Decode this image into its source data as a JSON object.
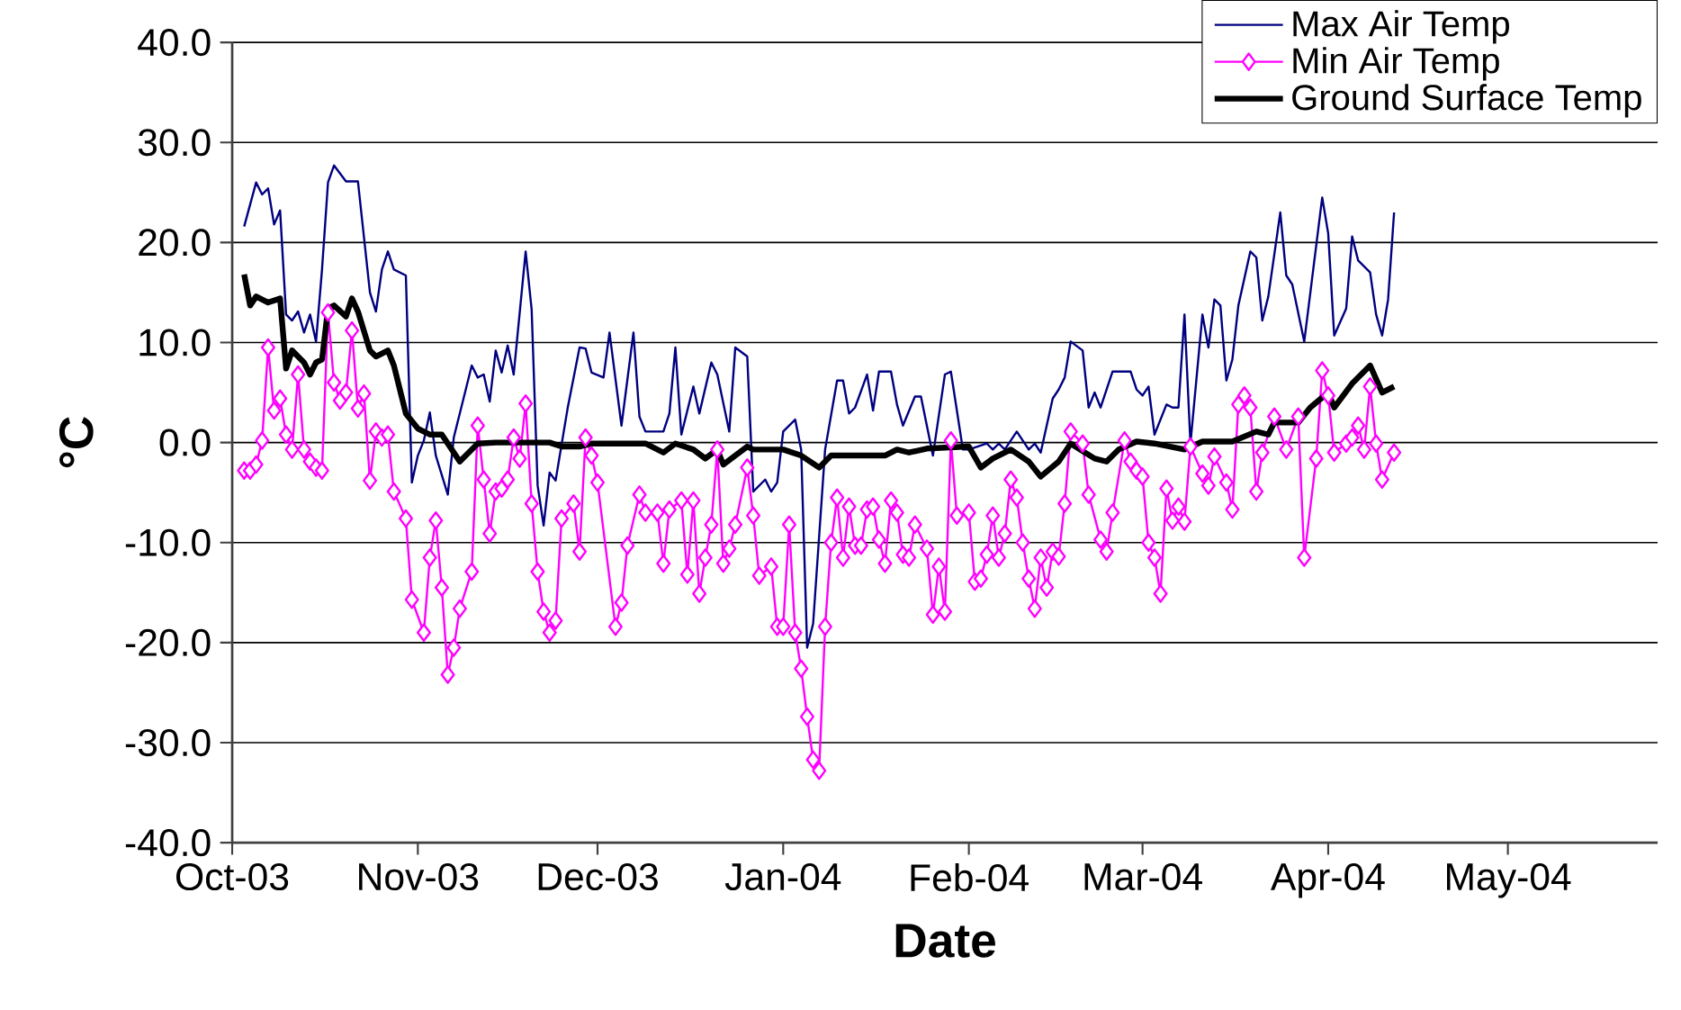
{
  "chart_data": {
    "type": "line",
    "xlabel": "Date",
    "ylabel": "°C",
    "xlim": [
      "2003-10-01",
      "2004-05-26"
    ],
    "xticks": [
      {
        "value": "2003-10-01",
        "label": "Oct-03"
      },
      {
        "value": "2003-11-01",
        "label": "Nov-03"
      },
      {
        "value": "2003-12-01",
        "label": "Dec-03"
      },
      {
        "value": "2004-01-01",
        "label": "Jan-04"
      },
      {
        "value": "2004-02-01",
        "label": "Feb-04"
      },
      {
        "value": "2004-03-01",
        "label": "Mar-04"
      },
      {
        "value": "2004-04-01",
        "label": "Apr-04"
      },
      {
        "value": "2004-05-01",
        "label": "May-04"
      }
    ],
    "ylim": [
      -40,
      40
    ],
    "yticks": [
      {
        "value": -40,
        "label": "-40.0"
      },
      {
        "value": -30,
        "label": "-30.0"
      },
      {
        "value": -20,
        "label": "-20.0"
      },
      {
        "value": -10,
        "label": "-10.0"
      },
      {
        "value": 0,
        "label": "0.0"
      },
      {
        "value": 10,
        "label": "10.0"
      },
      {
        "value": 20,
        "label": "20.0"
      },
      {
        "value": 30,
        "label": "30.0"
      },
      {
        "value": 40,
        "label": "40.0"
      }
    ],
    "grid": "y",
    "legend": "top right",
    "series": [
      {
        "name": "Max Air Temp",
        "color": "#000080",
        "marker": "none",
        "x": [
          "2003-10-03",
          "2003-10-05",
          "2003-10-06",
          "2003-10-07",
          "2003-10-08",
          "2003-10-09",
          "2003-10-10",
          "2003-10-11",
          "2003-10-12",
          "2003-10-13",
          "2003-10-14",
          "2003-10-15",
          "2003-10-16",
          "2003-10-17",
          "2003-10-18",
          "2003-10-20",
          "2003-10-22",
          "2003-10-24",
          "2003-10-25",
          "2003-10-26",
          "2003-10-27",
          "2003-10-28",
          "2003-10-30",
          "2003-10-31",
          "2003-11-01",
          "2003-11-02",
          "2003-11-03",
          "2003-11-04",
          "2003-11-06",
          "2003-11-07",
          "2003-11-10",
          "2003-11-11",
          "2003-11-12",
          "2003-11-13",
          "2003-11-14",
          "2003-11-15",
          "2003-11-16",
          "2003-11-17",
          "2003-11-19",
          "2003-11-20",
          "2003-11-21",
          "2003-11-22",
          "2003-11-23",
          "2003-11-24",
          "2003-11-26",
          "2003-11-28",
          "2003-11-29",
          "2003-11-30",
          "2003-12-02",
          "2003-12-03",
          "2003-12-05",
          "2003-12-07",
          "2003-12-08",
          "2003-12-09",
          "2003-12-12",
          "2003-12-13",
          "2003-12-14",
          "2003-12-15",
          "2003-12-17",
          "2003-12-18",
          "2003-12-20",
          "2003-12-21",
          "2003-12-23",
          "2003-12-24",
          "2003-12-26",
          "2003-12-27",
          "2003-12-29",
          "2003-12-30",
          "2003-12-31",
          "2004-01-01",
          "2004-01-03",
          "2004-01-04",
          "2004-01-05",
          "2004-01-06",
          "2004-01-08",
          "2004-01-10",
          "2004-01-11",
          "2004-01-12",
          "2004-01-13",
          "2004-01-15",
          "2004-01-16",
          "2004-01-17",
          "2004-01-19",
          "2004-01-20",
          "2004-01-21",
          "2004-01-23",
          "2004-01-24",
          "2004-01-26",
          "2004-01-28",
          "2004-01-29",
          "2004-01-31",
          "2004-02-01",
          "2004-02-04",
          "2004-02-05",
          "2004-02-06",
          "2004-02-07",
          "2004-02-09",
          "2004-02-11",
          "2004-02-12",
          "2004-02-13",
          "2004-02-15",
          "2004-02-16",
          "2004-02-17",
          "2004-02-18",
          "2004-02-20",
          "2004-02-21",
          "2004-02-22",
          "2004-02-23",
          "2004-02-25",
          "2004-02-28",
          "2004-02-29",
          "2004-03-01",
          "2004-03-02",
          "2004-03-03",
          "2004-03-05",
          "2004-03-06",
          "2004-03-07",
          "2004-03-08",
          "2004-03-09",
          "2004-03-11",
          "2004-03-12",
          "2004-03-13",
          "2004-03-14",
          "2004-03-15",
          "2004-03-16",
          "2004-03-17",
          "2004-03-19",
          "2004-03-20",
          "2004-03-21",
          "2004-03-22",
          "2004-03-24",
          "2004-03-25",
          "2004-03-26",
          "2004-03-28",
          "2004-03-31",
          "2004-04-01",
          "2004-04-02",
          "2004-04-04",
          "2004-04-05",
          "2004-04-06",
          "2004-04-08",
          "2004-04-09",
          "2004-04-10",
          "2004-04-11",
          "2004-04-12"
        ],
        "values": [
          21.6,
          26.0,
          24.8,
          25.4,
          21.8,
          23.2,
          12.8,
          12.2,
          13.1,
          11.0,
          12.8,
          10.1,
          17.3,
          26.0,
          27.7,
          26.1,
          26.1,
          15.0,
          13.1,
          17.3,
          19.1,
          17.3,
          16.7,
          -4.0,
          -1.3,
          0.2,
          3.0,
          -1.3,
          -5.2,
          0.5,
          7.7,
          6.5,
          6.8,
          4.1,
          9.2,
          7.0,
          9.7,
          6.8,
          19.1,
          13.3,
          -4.3,
          -8.3,
          -3.0,
          -3.8,
          3.4,
          9.5,
          9.4,
          7.0,
          6.5,
          11.0,
          1.7,
          11.0,
          2.6,
          1.1,
          1.1,
          2.9,
          9.5,
          0.8,
          5.6,
          2.9,
          8.0,
          6.8,
          1.1,
          9.5,
          8.6,
          -4.9,
          -3.7,
          -4.9,
          -4.0,
          1.1,
          2.3,
          -0.7,
          -20.5,
          -18.1,
          -0.7,
          6.2,
          6.2,
          2.9,
          3.5,
          6.8,
          3.2,
          7.1,
          7.1,
          3.8,
          1.7,
          4.6,
          4.6,
          -1.3,
          6.8,
          7.1,
          -0.7,
          -0.7,
          -0.1,
          -0.7,
          -0.1,
          -0.7,
          1.1,
          -0.7,
          -0.1,
          -1.0,
          4.4,
          5.3,
          6.5,
          10.1,
          9.2,
          3.5,
          5.0,
          3.5,
          7.1,
          7.1,
          5.3,
          4.7,
          5.6,
          0.8,
          3.8,
          3.5,
          3.5,
          12.8,
          -0.1,
          12.8,
          9.5,
          14.3,
          13.7,
          6.2,
          8.3,
          13.7,
          19.1,
          18.5,
          12.2,
          14.6,
          23.0,
          16.7,
          15.8,
          10.1,
          24.5,
          20.9,
          10.7,
          13.4,
          20.6,
          18.2,
          17.0,
          12.8,
          10.7,
          14.3,
          23.0
        ]
      },
      {
        "name": "Min Air Temp",
        "color": "#ff00ff",
        "marker": "diamond",
        "x": [
          "2003-10-03",
          "2003-10-04",
          "2003-10-05",
          "2003-10-06",
          "2003-10-07",
          "2003-10-08",
          "2003-10-09",
          "2003-10-10",
          "2003-10-11",
          "2003-10-12",
          "2003-10-13",
          "2003-10-14",
          "2003-10-15",
          "2003-10-16",
          "2003-10-17",
          "2003-10-18",
          "2003-10-19",
          "2003-10-20",
          "2003-10-21",
          "2003-10-22",
          "2003-10-23",
          "2003-10-24",
          "2003-10-25",
          "2003-10-26",
          "2003-10-27",
          "2003-10-28",
          "2003-10-30",
          "2003-10-31",
          "2003-11-02",
          "2003-11-03",
          "2003-11-04",
          "2003-11-05",
          "2003-11-06",
          "2003-11-07",
          "2003-11-08",
          "2003-11-10",
          "2003-11-11",
          "2003-11-12",
          "2003-11-13",
          "2003-11-14",
          "2003-11-15",
          "2003-11-16",
          "2003-11-17",
          "2003-11-18",
          "2003-11-19",
          "2003-11-20",
          "2003-11-21",
          "2003-11-22",
          "2003-11-23",
          "2003-11-24",
          "2003-11-25",
          "2003-11-27",
          "2003-11-28",
          "2003-11-29",
          "2003-11-30",
          "2003-12-01",
          "2003-12-04",
          "2003-12-05",
          "2003-12-06",
          "2003-12-08",
          "2003-12-09",
          "2003-12-11",
          "2003-12-12",
          "2003-12-13",
          "2003-12-15",
          "2003-12-16",
          "2003-12-17",
          "2003-12-18",
          "2003-12-19",
          "2003-12-20",
          "2003-12-21",
          "2003-12-22",
          "2003-12-23",
          "2003-12-24",
          "2003-12-26",
          "2003-12-27",
          "2003-12-28",
          "2003-12-30",
          "2003-12-31",
          "2004-01-01",
          "2004-01-02",
          "2004-01-03",
          "2004-01-04",
          "2004-01-05",
          "2004-01-06",
          "2004-01-07",
          "2004-01-08",
          "2004-01-09",
          "2004-01-10",
          "2004-01-11",
          "2004-01-12",
          "2004-01-13",
          "2004-01-14",
          "2004-01-15",
          "2004-01-16",
          "2004-01-17",
          "2004-01-18",
          "2004-01-19",
          "2004-01-20",
          "2004-01-21",
          "2004-01-22",
          "2004-01-23",
          "2004-01-25",
          "2004-01-26",
          "2004-01-27",
          "2004-01-28",
          "2004-01-29",
          "2004-01-30",
          "2004-02-01",
          "2004-02-02",
          "2004-02-03",
          "2004-02-04",
          "2004-02-05",
          "2004-02-06",
          "2004-02-07",
          "2004-02-08",
          "2004-02-09",
          "2004-02-10",
          "2004-02-11",
          "2004-02-12",
          "2004-02-13",
          "2004-02-14",
          "2004-02-15",
          "2004-02-16",
          "2004-02-17",
          "2004-02-18",
          "2004-02-20",
          "2004-02-21",
          "2004-02-23",
          "2004-02-24",
          "2004-02-25",
          "2004-02-27",
          "2004-02-28",
          "2004-02-29",
          "2004-03-01",
          "2004-03-02",
          "2004-03-03",
          "2004-03-04",
          "2004-03-05",
          "2004-03-06",
          "2004-03-07",
          "2004-03-08",
          "2004-03-09",
          "2004-03-11",
          "2004-03-12",
          "2004-03-13",
          "2004-03-15",
          "2004-03-16",
          "2004-03-17",
          "2004-03-18",
          "2004-03-19",
          "2004-03-20",
          "2004-03-21",
          "2004-03-23",
          "2004-03-25",
          "2004-03-27",
          "2004-03-28",
          "2004-03-30",
          "2004-03-31",
          "2004-04-01",
          "2004-04-02",
          "2004-04-04",
          "2004-04-05",
          "2004-04-06",
          "2004-04-07",
          "2004-04-08",
          "2004-04-09",
          "2004-04-10",
          "2004-04-12"
        ],
        "values": [
          -2.8,
          -2.8,
          -2.2,
          0.2,
          9.5,
          3.2,
          4.4,
          0.8,
          -0.7,
          6.8,
          -0.7,
          -1.9,
          -2.5,
          -2.8,
          13.0,
          6.0,
          4.2,
          5.0,
          11.2,
          3.4,
          4.9,
          -3.8,
          1.1,
          0.5,
          0.8,
          -4.9,
          -7.6,
          -15.7,
          -19.0,
          -11.5,
          -7.8,
          -14.5,
          -23.2,
          -20.5,
          -16.6,
          -12.9,
          1.7,
          -3.7,
          -9.1,
          -4.9,
          -4.6,
          -3.7,
          0.5,
          -1.6,
          3.9,
          -6.1,
          -12.9,
          -16.9,
          -19.0,
          -17.8,
          -7.6,
          -6.1,
          -10.9,
          0.5,
          -1.3,
          -4.0,
          -18.4,
          -16.0,
          -10.3,
          -5.2,
          -7.0,
          -7.0,
          -12.1,
          -6.7,
          -5.8,
          -13.2,
          -5.8,
          -15.1,
          -11.5,
          -8.2,
          -0.7,
          -12.1,
          -10.6,
          -8.2,
          -2.5,
          -7.3,
          -13.3,
          -12.4,
          -18.4,
          -18.4,
          -8.2,
          -19.0,
          -22.6,
          -27.4,
          -31.7,
          -32.8,
          -18.4,
          -10.0,
          -5.5,
          -11.5,
          -6.4,
          -10.3,
          -10.3,
          -6.7,
          -6.4,
          -9.7,
          -12.1,
          -5.8,
          -7.0,
          -11.2,
          -11.5,
          -8.2,
          -10.6,
          -17.2,
          -12.4,
          -16.9,
          0.2,
          -7.3,
          -7.0,
          -13.9,
          -13.6,
          -11.2,
          -7.3,
          -11.5,
          -9.1,
          -3.7,
          -5.5,
          -10.0,
          -13.6,
          -16.6,
          -11.5,
          -14.5,
          -10.9,
          -11.4,
          -6.1,
          1.1,
          -0.1,
          -5.2,
          -9.7,
          -10.9,
          -7.0,
          0.2,
          -1.9,
          -2.8,
          -3.4,
          -10.0,
          -11.5,
          -15.1,
          -4.6,
          -7.8,
          -6.4,
          -7.9,
          -0.4,
          -3.1,
          -4.3,
          -1.4,
          -4.0,
          -6.7,
          3.8,
          4.7,
          3.5,
          -4.9,
          -1.0,
          2.6,
          -0.7,
          2.6,
          -11.5,
          -1.6,
          7.2,
          4.7,
          -1.0,
          -0.1,
          0.5,
          1.7,
          -0.7,
          5.6,
          -0.1,
          -3.7,
          -1.0
        ]
      },
      {
        "name": "Ground Surface Temp",
        "color": "#000000",
        "marker": "none",
        "x": [
          "2003-10-03",
          "2003-10-04",
          "2003-10-05",
          "2003-10-07",
          "2003-10-09",
          "2003-10-10",
          "2003-10-11",
          "2003-10-13",
          "2003-10-14",
          "2003-10-15",
          "2003-10-16",
          "2003-10-17",
          "2003-10-18",
          "2003-10-20",
          "2003-10-21",
          "2003-10-22",
          "2003-10-24",
          "2003-10-25",
          "2003-10-27",
          "2003-10-28",
          "2003-10-30",
          "2003-11-01",
          "2003-11-03",
          "2003-11-05",
          "2003-11-06",
          "2003-11-08",
          "2003-11-09",
          "2003-11-11",
          "2003-11-14",
          "2003-11-23",
          "2003-11-25",
          "2003-11-28",
          "2003-11-30",
          "2003-12-09",
          "2003-12-12",
          "2003-12-14",
          "2003-12-17",
          "2003-12-19",
          "2003-12-21",
          "2003-12-22",
          "2003-12-26",
          "2003-12-27",
          "2004-01-01",
          "2004-01-04",
          "2004-01-07",
          "2004-01-09",
          "2004-01-18",
          "2004-01-20",
          "2004-01-22",
          "2004-01-25",
          "2004-02-01",
          "2004-02-03",
          "2004-02-05",
          "2004-02-08",
          "2004-02-11",
          "2004-02-13",
          "2004-02-16",
          "2004-02-18",
          "2004-02-22",
          "2004-02-24",
          "2004-02-26",
          "2004-02-29",
          "2004-03-03",
          "2004-03-08",
          "2004-03-11",
          "2004-03-16",
          "2004-03-20",
          "2004-03-22",
          "2004-03-23",
          "2004-03-27",
          "2004-03-29",
          "2004-04-01",
          "2004-04-02",
          "2004-04-05",
          "2004-04-08",
          "2004-04-10",
          "2004-04-12"
        ],
        "values": [
          16.8,
          13.7,
          14.6,
          14.0,
          14.4,
          7.4,
          9.2,
          8.0,
          6.8,
          8.0,
          8.3,
          13.4,
          13.7,
          12.6,
          14.4,
          13.1,
          9.2,
          8.6,
          9.2,
          7.7,
          2.9,
          1.4,
          0.8,
          0.8,
          -0.1,
          -1.9,
          -1.3,
          -0.1,
          0.0,
          0.0,
          -0.4,
          -0.4,
          -0.1,
          -0.1,
          -1.0,
          -0.1,
          -0.7,
          -1.6,
          -0.7,
          -2.2,
          -0.4,
          -0.7,
          -0.7,
          -1.3,
          -2.5,
          -1.3,
          -1.3,
          -0.7,
          -1.0,
          -0.6,
          -0.4,
          -2.5,
          -1.6,
          -0.7,
          -1.9,
          -3.4,
          -1.9,
          -0.1,
          -1.6,
          -1.9,
          -0.7,
          0.1,
          -0.1,
          -0.7,
          0.1,
          0.1,
          1.1,
          0.8,
          2.0,
          2.0,
          3.5,
          5.0,
          3.5,
          5.9,
          7.7,
          5.0,
          5.6
        ]
      }
    ]
  }
}
